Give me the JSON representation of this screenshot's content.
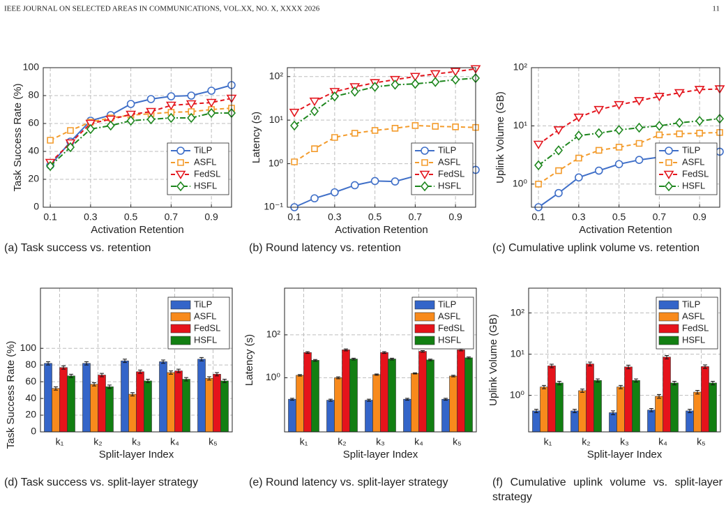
{
  "header": {
    "journal": "IEEE JOURNAL ON SELECTED AREAS IN COMMUNICATIONS, VOL.XX, NO. X, XXXX 2026",
    "page": "11"
  },
  "chart_data": [
    {
      "type": "line",
      "caption": "(a) Task success vs. retention",
      "xlabel": "Activation Retention",
      "ylabel": "Task Success Rate (%)",
      "x": [
        0.1,
        0.2,
        0.3,
        0.4,
        0.5,
        0.6,
        0.7,
        0.8,
        0.9,
        1.0
      ],
      "xlim": [
        0.065,
        1.0
      ],
      "xticks": [
        0.1,
        0.3,
        0.5,
        0.7,
        0.9
      ],
      "ylim": [
        0,
        100
      ],
      "yticks": [
        0,
        20,
        40,
        60,
        80,
        100
      ],
      "log": false,
      "grid": true,
      "legend": "lower right",
      "series": [
        {
          "name": "TiLP",
          "color": "#3f6fc8",
          "marker": "circle",
          "linestyle": "solid",
          "values": [
            30,
            47,
            62,
            66,
            74,
            77.5,
            79.5,
            80,
            83.5,
            87.5
          ]
        },
        {
          "name": "ASFL",
          "color": "#f39b2b",
          "marker": "square",
          "linestyle": "dashed",
          "values": [
            48,
            55,
            61,
            64,
            66,
            67,
            68,
            68.5,
            70,
            71
          ]
        },
        {
          "name": "FedSL",
          "color": "#e3151d",
          "marker": "triangle",
          "linestyle": "dashed",
          "values": [
            32,
            46,
            60,
            63,
            66.5,
            68.5,
            73,
            74,
            75,
            78
          ]
        },
        {
          "name": "HSFL",
          "color": "#1d861d",
          "marker": "diamond",
          "linestyle": "dashdot",
          "values": [
            29.5,
            43,
            56,
            58.5,
            62,
            63,
            64,
            64,
            67.5,
            67.5
          ]
        }
      ]
    },
    {
      "type": "line",
      "caption": "(b) Round latency vs. retention",
      "xlabel": "Activation Retention",
      "ylabel": "Latency (s)",
      "x": [
        0.1,
        0.2,
        0.3,
        0.4,
        0.5,
        0.6,
        0.7,
        0.8,
        0.9,
        1.0
      ],
      "xlim": [
        0.065,
        1.0
      ],
      "xticks": [
        0.1,
        0.3,
        0.5,
        0.7,
        0.9
      ],
      "ylim": [
        0.1,
        160
      ],
      "yticks": [
        {
          "value": 0.1,
          "label": "10⁻¹"
        },
        {
          "value": 1,
          "label": "10⁰"
        },
        {
          "value": 10,
          "label": "10¹"
        },
        {
          "value": 100,
          "label": "10²"
        }
      ],
      "log": true,
      "grid": true,
      "legend": "lower right",
      "series": [
        {
          "name": "TiLP",
          "color": "#3f6fc8",
          "marker": "circle",
          "linestyle": "solid",
          "values": [
            0.1,
            0.16,
            0.22,
            0.32,
            0.4,
            0.39,
            0.52,
            0.6,
            0.65,
            0.72
          ]
        },
        {
          "name": "ASFL",
          "color": "#f39b2b",
          "marker": "square",
          "linestyle": "dashed",
          "values": [
            1.1,
            2.2,
            4,
            5,
            5.8,
            6.5,
            7.5,
            7.2,
            7,
            6.8
          ]
        },
        {
          "name": "FedSL",
          "color": "#e3151d",
          "marker": "triangle",
          "linestyle": "dashed",
          "values": [
            15,
            27,
            45,
            58,
            72,
            85,
            100,
            115,
            130,
            150
          ]
        },
        {
          "name": "HSFL",
          "color": "#1d861d",
          "marker": "diamond",
          "linestyle": "dashdot",
          "values": [
            7.5,
            16,
            35,
            45,
            58,
            65,
            68,
            75,
            85,
            92
          ]
        }
      ]
    },
    {
      "type": "line",
      "caption": "(c) Cumulative uplink volume vs. retention",
      "xlabel": "Activation Retention",
      "ylabel": "Uplink Volume (GB)",
      "x": [
        0.1,
        0.2,
        0.3,
        0.4,
        0.5,
        0.6,
        0.7,
        0.8,
        0.9,
        1.0
      ],
      "xlim": [
        0.065,
        1.0
      ],
      "xticks": [
        0.1,
        0.3,
        0.5,
        0.7,
        0.9
      ],
      "ylim": [
        0.4,
        100
      ],
      "yticks": [
        {
          "value": 1,
          "label": "10⁰"
        },
        {
          "value": 10,
          "label": "10¹"
        },
        {
          "value": 100,
          "label": "10²"
        }
      ],
      "log": true,
      "grid": true,
      "legend": "lower right",
      "series": [
        {
          "name": "TiLP",
          "color": "#3f6fc8",
          "marker": "circle",
          "linestyle": "solid",
          "values": [
            0.4,
            0.7,
            1.3,
            1.7,
            2.2,
            2.6,
            2.9,
            3.2,
            3.8,
            3.6
          ]
        },
        {
          "name": "ASFL",
          "color": "#f39b2b",
          "marker": "square",
          "linestyle": "dashed",
          "values": [
            1.0,
            1.7,
            2.8,
            3.8,
            4.3,
            5.0,
            7,
            7.3,
            7.5,
            7.7
          ]
        },
        {
          "name": "FedSL",
          "color": "#e3151d",
          "marker": "triangle",
          "linestyle": "dashed",
          "values": [
            4.8,
            8.5,
            14,
            19,
            23,
            27,
            32,
            37,
            42,
            43
          ]
        },
        {
          "name": "HSFL",
          "color": "#1d861d",
          "marker": "diamond",
          "linestyle": "dashdot",
          "values": [
            2.1,
            3.8,
            6.8,
            7.5,
            8.5,
            9.3,
            10,
            11.3,
            12.2,
            13.3
          ]
        }
      ]
    },
    {
      "type": "bar",
      "caption": "(d) Task success vs. split-layer strategy",
      "xlabel": "Split-layer Index",
      "ylabel": "Task Success Rate (%)",
      "categories": [
        "k₁",
        "k₂",
        "k₃",
        "k₄",
        "k₅"
      ],
      "ylim": [
        0,
        172
      ],
      "yticks": [
        0,
        20,
        40,
        60,
        80,
        100
      ],
      "log": false,
      "grid": true,
      "legend": "upper right",
      "series": [
        {
          "name": "TiLP",
          "color": "#3465c9",
          "values": [
            82,
            82,
            85,
            84,
            87
          ],
          "errors": [
            2,
            2,
            2,
            2,
            2
          ]
        },
        {
          "name": "ASFL",
          "color": "#f88a1c",
          "values": [
            52,
            57,
            45,
            71,
            64
          ],
          "errors": [
            2,
            2,
            2,
            2,
            2
          ]
        },
        {
          "name": "FedSL",
          "color": "#e5131b",
          "values": [
            77,
            68,
            72,
            73,
            69
          ],
          "errors": [
            2,
            2,
            2,
            2,
            2
          ]
        },
        {
          "name": "HSFL",
          "color": "#127f12",
          "values": [
            67,
            54,
            61,
            63,
            61
          ],
          "errors": [
            2,
            2,
            2,
            2,
            2
          ]
        }
      ]
    },
    {
      "type": "bar",
      "caption": "(e) Round latency vs. split-layer strategy",
      "xlabel": "Split-layer Index",
      "ylabel": "Latency (s)",
      "categories": [
        "k₁",
        "k₂",
        "k₃",
        "k₄",
        "k₅"
      ],
      "ylim": [
        0.003,
        15000
      ],
      "yticks": [
        {
          "value": 1,
          "label": "10⁰"
        },
        {
          "value": 100,
          "label": "10²"
        }
      ],
      "log": true,
      "grid": true,
      "legend": "upper right",
      "series": [
        {
          "name": "TiLP",
          "color": "#3465c9",
          "values": [
            0.1,
            0.09,
            0.09,
            0.1,
            0.1
          ],
          "errors": [
            0.01,
            0.01,
            0.01,
            0.01,
            0.01
          ]
        },
        {
          "name": "ASFL",
          "color": "#f88a1c",
          "values": [
            1.3,
            1.0,
            1.4,
            1.6,
            1.2
          ],
          "errors": [
            0.1,
            0.1,
            0.1,
            0.1,
            0.1
          ]
        },
        {
          "name": "FedSL",
          "color": "#e5131b",
          "values": [
            15,
            20,
            15,
            17,
            20
          ],
          "errors": [
            1.5,
            2,
            1.5,
            1.5,
            2
          ]
        },
        {
          "name": "HSFL",
          "color": "#127f12",
          "values": [
            6.5,
            7.5,
            7.5,
            6.8,
            8.5
          ],
          "errors": [
            0.6,
            0.7,
            0.7,
            0.6,
            0.8
          ]
        }
      ]
    },
    {
      "type": "bar",
      "caption": "(f) Cumulative uplink volume vs. split-layer strategy",
      "xlabel": "Split-layer Index",
      "ylabel": "Uplink Volume (GB)",
      "categories": [
        "k₁",
        "k₂",
        "k₃",
        "k₄",
        "k₅"
      ],
      "ylim": [
        0.13,
        400
      ],
      "yticks": [
        {
          "value": 1,
          "label": "10⁰"
        },
        {
          "value": 10,
          "label": "10¹"
        },
        {
          "value": 100,
          "label": "10²"
        }
      ],
      "log": true,
      "grid": true,
      "legend": "upper right",
      "series": [
        {
          "name": "TiLP",
          "color": "#3465c9",
          "values": [
            0.42,
            0.42,
            0.38,
            0.44,
            0.42
          ],
          "errors": [
            0.04,
            0.04,
            0.04,
            0.04,
            0.04
          ]
        },
        {
          "name": "ASFL",
          "color": "#f88a1c",
          "values": [
            1.6,
            1.3,
            1.6,
            0.95,
            1.2
          ],
          "errors": [
            0.15,
            0.12,
            0.15,
            0.1,
            0.12
          ]
        },
        {
          "name": "FedSL",
          "color": "#e5131b",
          "values": [
            5.2,
            5.8,
            4.9,
            8.5,
            5.0
          ],
          "errors": [
            0.5,
            0.6,
            0.5,
            0.8,
            0.5
          ]
        },
        {
          "name": "HSFL",
          "color": "#127f12",
          "values": [
            2.0,
            2.3,
            2.3,
            2.0,
            2.0
          ],
          "errors": [
            0.2,
            0.2,
            0.2,
            0.2,
            0.2
          ]
        }
      ]
    }
  ]
}
